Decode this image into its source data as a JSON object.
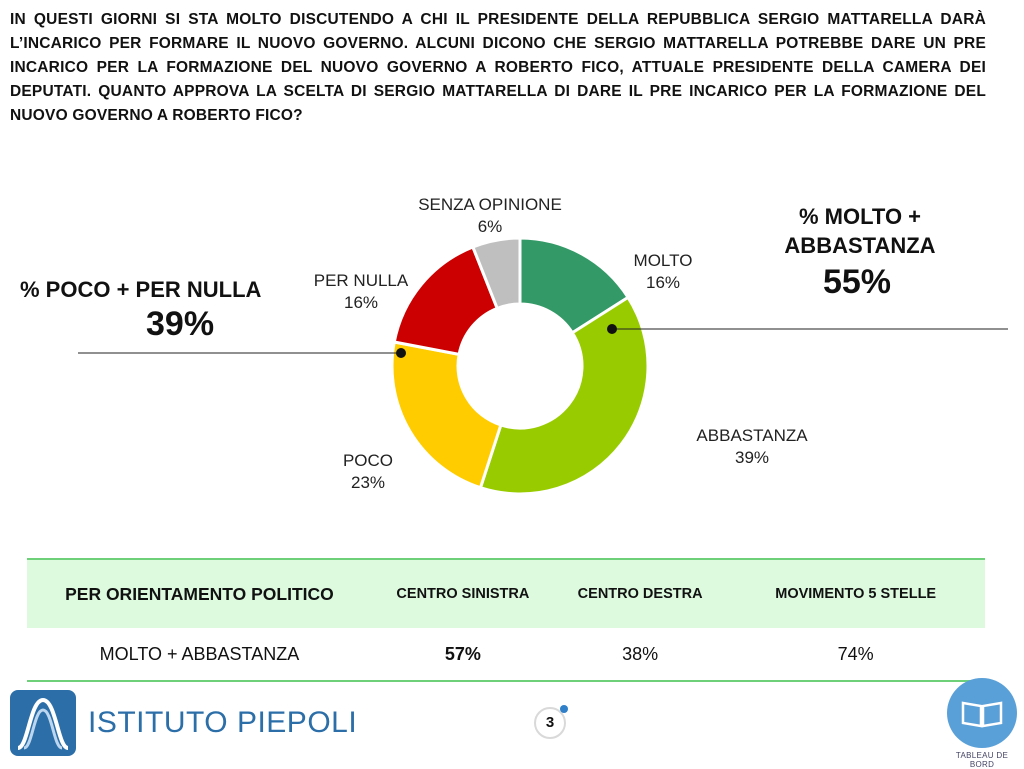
{
  "question": "IN QUESTI GIORNI SI STA MOLTO DISCUTENDO A CHI IL PRESIDENTE DELLA REPUBBLICA SERGIO MATTARELLA DARÀ L’INCARICO PER FORMARE IL NUOVO GOVERNO. ALCUNI DICONO CHE SERGIO MATTARELLA POTREBBE DARE UN PRE INCARICO PER LA FORMAZIONE DEL NUOVO GOVERNO A ROBERTO FICO, ATTUALE PRESIDENTE DELLA CAMERA DEI DEPUTATI. QUANTO APPROVA LA SCELTA DI SERGIO MATTARELLA DI DARE IL PRE INCARICO PER LA FORMAZIONE DEL NUOVO GOVERNO A ROBERTO FICO?",
  "summary_negative": {
    "label": "% POCO + PER NULLA",
    "value": "39%"
  },
  "summary_positive": {
    "label": "% MOLTO + ABBASTANZA",
    "value": "55%"
  },
  "colors": {
    "molto": "#339966",
    "abbastanza": "#99cc00",
    "poco": "#ffcc00",
    "per_nulla": "#cc0000",
    "senza_opinione": "#bfbfbf",
    "table_header": "#ddfadf",
    "table_rule": "#6fd07a",
    "brand": "#2b6ea8"
  },
  "chart_data": {
    "type": "pie",
    "variant": "donut",
    "title": "",
    "slices": [
      {
        "label": "MOLTO",
        "value": 16,
        "value_label": "16%",
        "color": "#339966"
      },
      {
        "label": "ABBASTANZA",
        "value": 39,
        "value_label": "39%",
        "color": "#99cc00"
      },
      {
        "label": "POCO",
        "value": 23,
        "value_label": "23%",
        "color": "#ffcc00"
      },
      {
        "label": "PER NULLA",
        "value": 16,
        "value_label": "16%",
        "color": "#cc0000"
      },
      {
        "label": "SENZA OPINIONE",
        "value": 6,
        "value_label": "6%",
        "color": "#bfbfbf"
      }
    ]
  },
  "table": {
    "header": [
      "PER ORIENTAMENTO POLITICO",
      "CENTRO SINISTRA",
      "CENTRO DESTRA",
      "MOVIMENTO 5 STELLE"
    ],
    "row": [
      "MOLTO + ABBASTANZA",
      "57%",
      "38%",
      "74%"
    ]
  },
  "footer": {
    "brand": "ISTITUTO PIEPOLI",
    "page": "3",
    "tableau": "TABLEAU DE BORD"
  },
  "icons": {
    "logo": "piepoli-logo-icon",
    "tableau": "open-book-icon"
  }
}
